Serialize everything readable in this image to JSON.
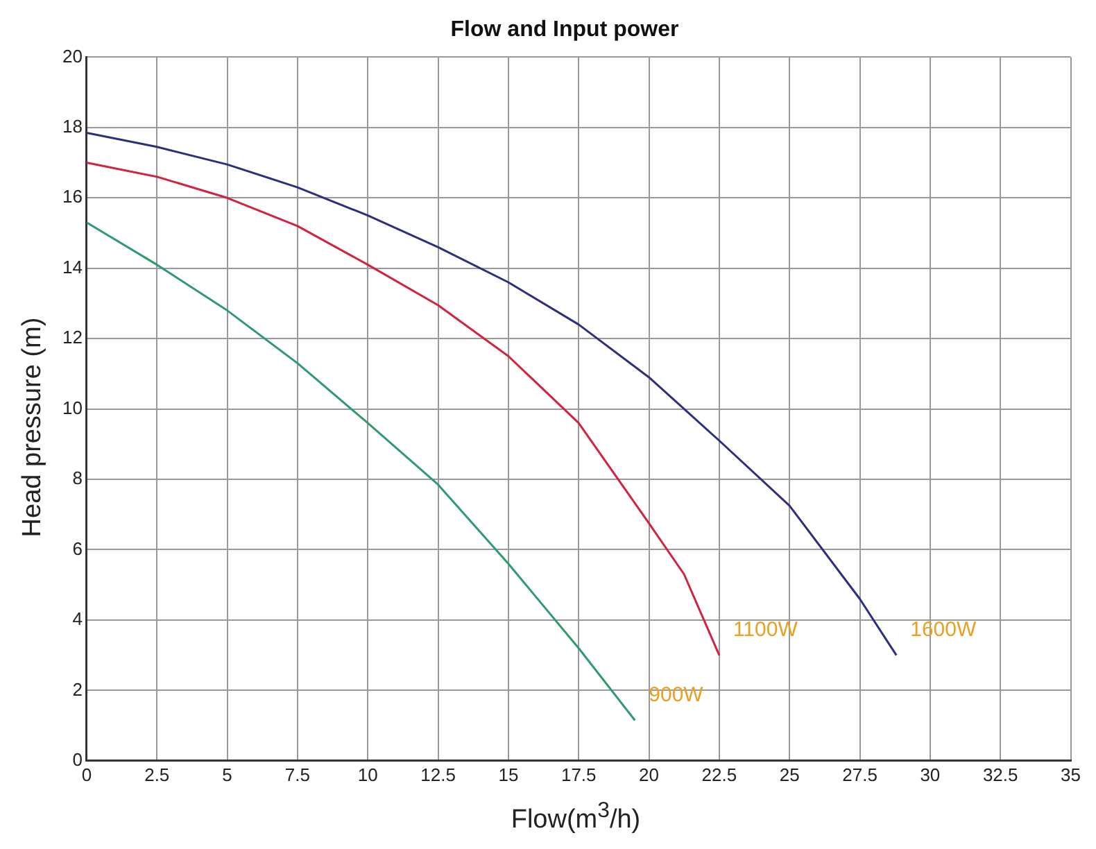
{
  "chart_data": {
    "type": "line",
    "title": "Flow and Input power",
    "xlabel": "Flow(m$^{3}$/h)",
    "ylabel": "Head pressure (m)",
    "xlim": [
      0,
      35
    ],
    "xticks": [
      0,
      2.5,
      5,
      7.5,
      10,
      12.5,
      15,
      17.5,
      20,
      22.5,
      25,
      27.5,
      30,
      32.5,
      35
    ],
    "ylim": [
      0,
      20
    ],
    "yticks": [
      0,
      2,
      4,
      6,
      8,
      10,
      12,
      14,
      16,
      18,
      20
    ],
    "grid": true,
    "legend": false,
    "marker": "none",
    "line_style": "solid",
    "series": [
      {
        "name": "1600W",
        "color": "#2e2e7e",
        "x": [
          0,
          2.5,
          5,
          7.5,
          10,
          12.5,
          15,
          17.5,
          20,
          22.5,
          25,
          27.5,
          28.8
        ],
        "values": [
          17.85,
          17.45,
          16.95,
          16.3,
          15.5,
          14.6,
          13.6,
          12.4,
          10.9,
          9.1,
          7.25,
          4.6,
          3.0
        ]
      },
      {
        "name": "1100W",
        "color": "#d4213f",
        "x": [
          0,
          2.5,
          5,
          7.5,
          10,
          12.5,
          15,
          17.5,
          20,
          21.25,
          22.5
        ],
        "values": [
          17.0,
          16.6,
          16.0,
          15.2,
          14.1,
          12.95,
          11.5,
          9.6,
          6.75,
          5.3,
          3.0
        ]
      },
      {
        "name": "900W",
        "color": "#2e9b6e",
        "x": [
          0,
          2.5,
          5,
          7.5,
          10,
          12.5,
          15,
          17.5,
          19.5
        ],
        "values": [
          15.3,
          14.1,
          12.8,
          11.3,
          9.6,
          7.85,
          5.6,
          3.2,
          1.15
        ]
      }
    ]
  }
}
